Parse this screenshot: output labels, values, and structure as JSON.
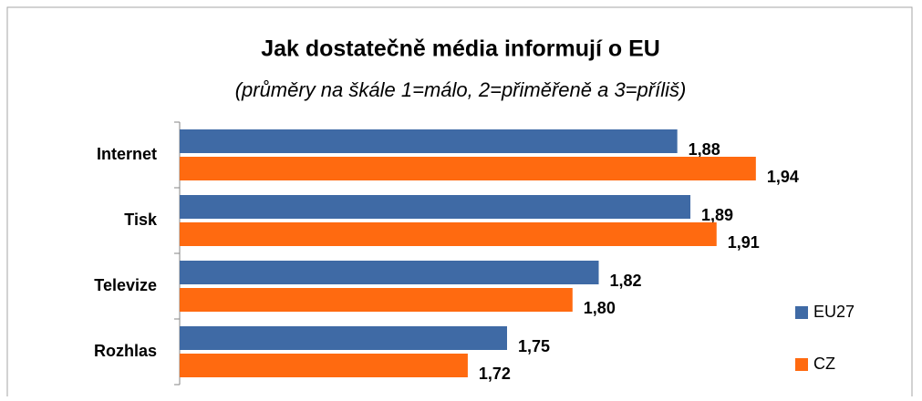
{
  "chart_data": {
    "type": "bar",
    "orientation": "horizontal",
    "title": "Jak dostatečně média informují o EU",
    "subtitle": "(průměry na škále 1=málo, 2=přiměřeně a 3=příliš)",
    "categories": [
      "Internet",
      "Tisk",
      "Televize",
      "Rozhlas"
    ],
    "series": [
      {
        "name": "EU27",
        "color": "#3f6aa5",
        "values": [
          1.88,
          1.89,
          1.82,
          1.75
        ],
        "value_labels": [
          "1,88",
          "1,89",
          "1,82",
          "1,75"
        ]
      },
      {
        "name": "CZ",
        "color": "#ff6a10",
        "values": [
          1.94,
          1.91,
          1.8,
          1.72
        ],
        "value_labels": [
          "1,94",
          "1,91",
          "1,80",
          "1,72"
        ]
      }
    ],
    "xlim": [
      1.5,
      2.0
    ],
    "legend": "right"
  }
}
